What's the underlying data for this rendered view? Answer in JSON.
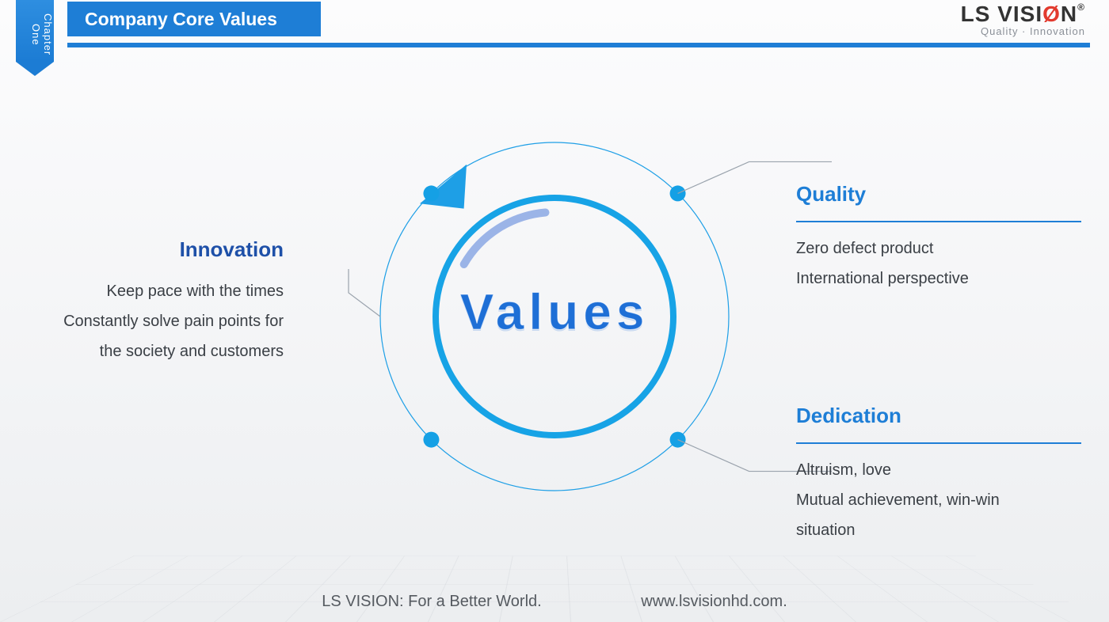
{
  "chapter": {
    "label": "Chapter\nOne"
  },
  "header": {
    "title": "Company Core Values"
  },
  "logo": {
    "name_pre": "LS VISI",
    "name_o": "Ø",
    "name_post": "N",
    "reg": "®",
    "tagline": "Quality · Innovation"
  },
  "diagram": {
    "center_label": "Values",
    "outer_radius": 220,
    "inner_radius": 150,
    "outer_stroke_color": "#1e9fe6",
    "inner_stroke_color": "#17a3e6",
    "inner_stroke_width": 8,
    "outer_stroke_width": 1.2,
    "arc_color": "#9bb4e7",
    "arc_width": 10,
    "pointer_color": "#1e9fe6",
    "dot_color": "#15a0e5",
    "dot_radius": 10,
    "connector_color": "#9aa3ad",
    "nodes": [
      {
        "angle_deg": 135
      },
      {
        "angle_deg": 45
      },
      {
        "angle_deg": 225
      },
      {
        "angle_deg": 315
      }
    ]
  },
  "blocks": {
    "innovation": {
      "title": "Innovation",
      "lines": [
        "Keep pace with the times",
        "Constantly solve pain points for",
        "the society and customers"
      ]
    },
    "quality": {
      "title": "Quality",
      "lines": [
        "Zero defect product",
        "International perspective"
      ]
    },
    "dedication": {
      "title": "Dedication",
      "lines": [
        "Altruism, love",
        "Mutual achievement, win-win",
        "situation"
      ]
    }
  },
  "footer": {
    "slogan": "LS VISION: For a Better World.",
    "site": "www.lsvisionhd.com."
  },
  "colors": {
    "primary": "#1e7ed6",
    "heading_dark": "#1e50a8",
    "text": "#3a3f45"
  }
}
